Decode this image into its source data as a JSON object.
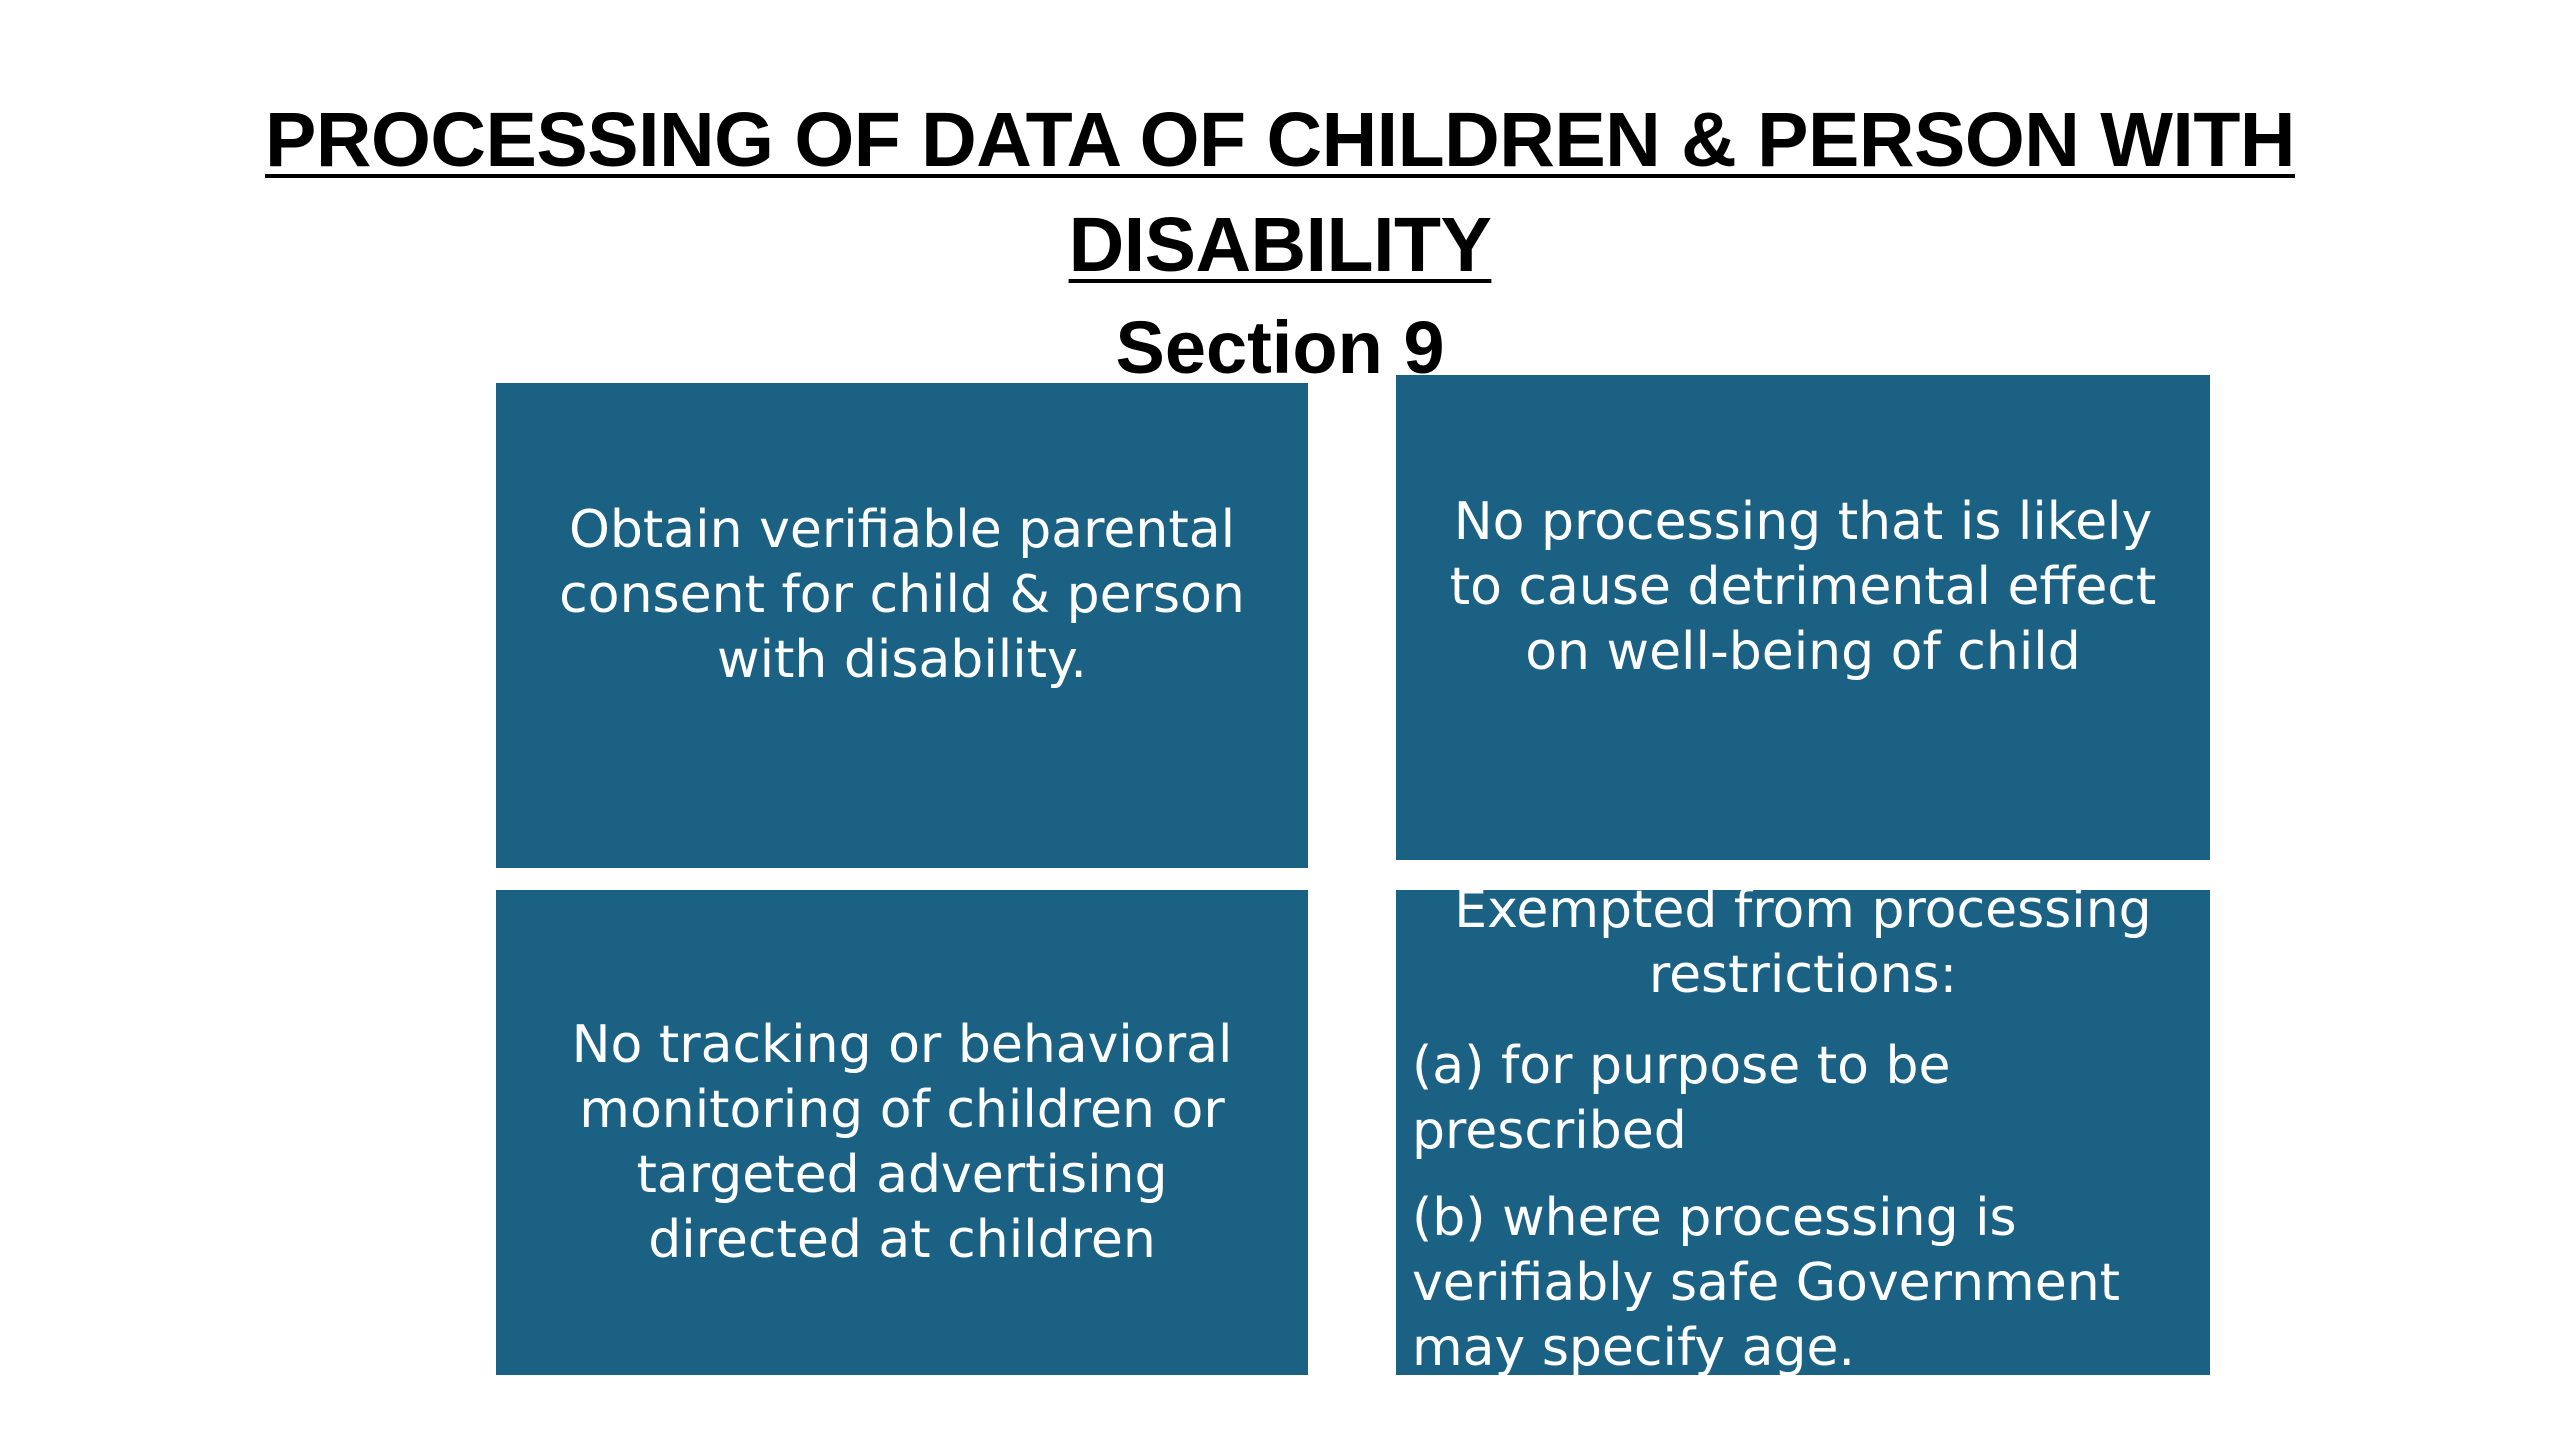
{
  "title": {
    "line1": "PROCESSING OF DATA OF CHILDREN & PERSON WITH",
    "line2": "DISABILITY",
    "subtitle": "Section 9"
  },
  "boxes": {
    "top_left": "Obtain verifiable parental consent for child & person with disability.",
    "top_right": "No processing that is likely to cause  detrimental effect on well-being of child",
    "bottom_left": "No tracking or behavioral monitoring of children or targeted advertising directed at children",
    "bottom_right": {
      "heading": "Exempted from processing restrictions:",
      "item_a": "(a) for purpose to be prescribed",
      "item_b": "(b) where processing is verifiably safe Government may specify age."
    }
  },
  "colors": {
    "box_fill": "#1a6184",
    "box_text": "#ffffff",
    "title_text": "#000000",
    "background": "#ffffff"
  }
}
